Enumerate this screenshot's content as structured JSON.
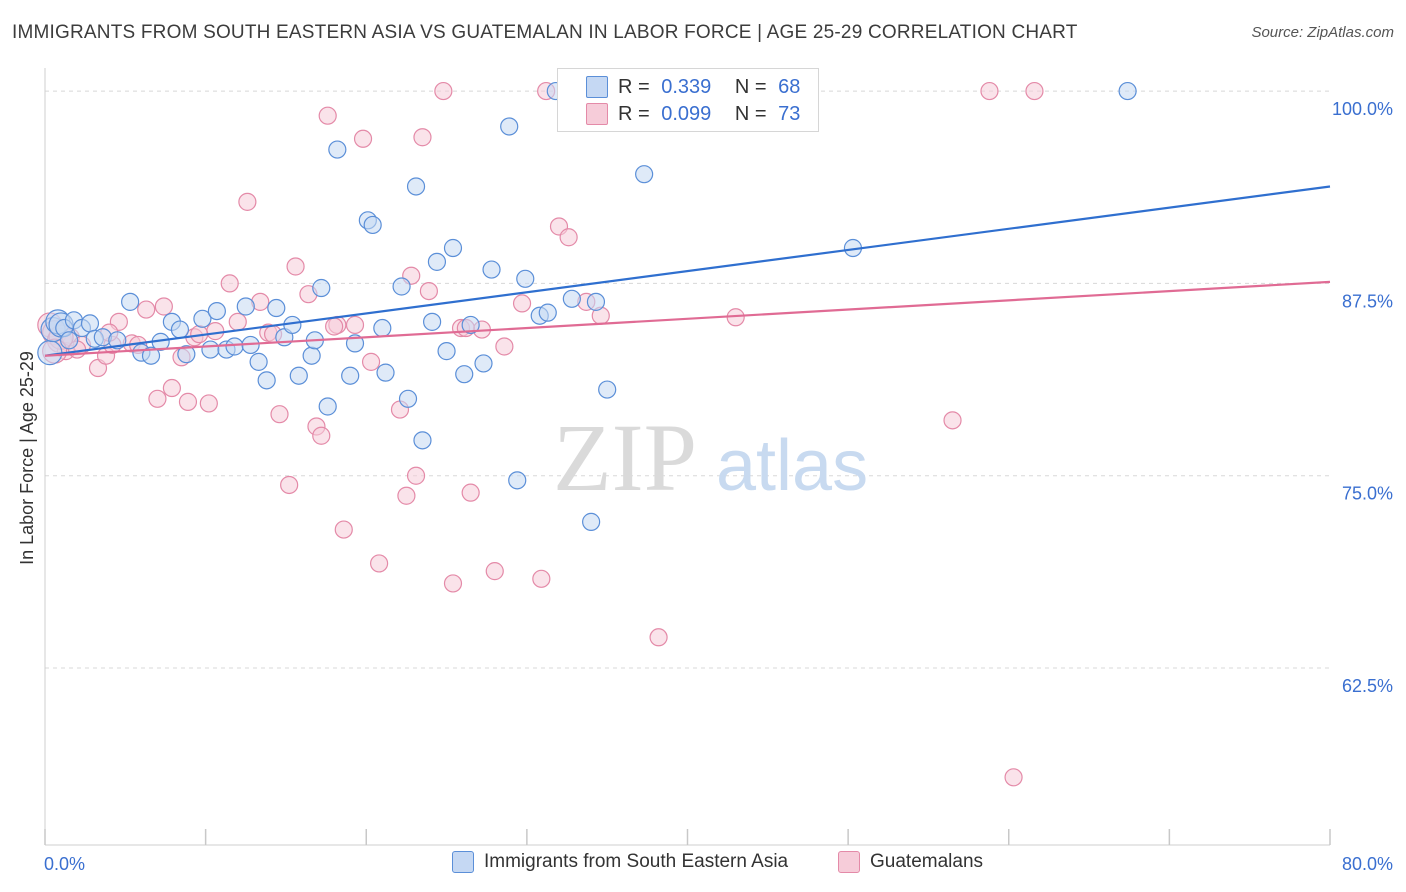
{
  "header": {
    "title": "IMMIGRANTS FROM SOUTH EASTERN ASIA VS GUATEMALAN IN LABOR FORCE | AGE 25-29 CORRELATION CHART",
    "source": "Source: ZipAtlas.com"
  },
  "colors": {
    "blue": "#5b8fd8",
    "blue_fill": "#c5d8f3",
    "blue_line": "#2f6fcf",
    "pink": "#e48aa8",
    "pink_fill": "#f6ccd9",
    "pink_line": "#e06b94",
    "tick_label": "#3a6fd0",
    "grid": "#d8d8d8"
  },
  "legend": {
    "blue": {
      "r_label": "R =",
      "r_value": "0.339",
      "n_label": "N =",
      "n_value": "68"
    },
    "pink": {
      "r_label": "R =",
      "r_value": "0.099",
      "n_label": "N =",
      "n_value": "73"
    }
  },
  "bottom_legend": {
    "blue_label": "Immigrants from South Eastern Asia",
    "pink_label": "Guatemalans"
  },
  "watermark": {
    "zip": "ZIP",
    "atlas": "atlas"
  },
  "chart_data": {
    "type": "scatter",
    "title": "IMMIGRANTS FROM SOUTH EASTERN ASIA VS GUATEMALAN IN LABOR FORCE | AGE 25-29 CORRELATION CHART",
    "ylabel": "In Labor Force | Age 25-29",
    "xlabel": "",
    "xlim": [
      0,
      80
    ],
    "ylim": [
      51,
      101.5
    ],
    "x_tick_labels": [
      "0.0%",
      "80.0%"
    ],
    "y_ticks": [
      62.5,
      75.0,
      87.5,
      100.0
    ],
    "y_tick_labels": [
      "62.5%",
      "75.0%",
      "87.5%",
      "100.0%"
    ],
    "grid": true,
    "series": [
      {
        "name": "Immigrants from South Eastern Asia",
        "color": "#5b8fd8",
        "trend": {
          "x": [
            0,
            80
          ],
          "y": [
            82.8,
            93.8
          ]
        },
        "points": [
          [
            0.3,
            83.0
          ],
          [
            0.5,
            84.5
          ],
          [
            0.8,
            85.0
          ],
          [
            1.0,
            84.8
          ],
          [
            1.2,
            84.6
          ],
          [
            1.5,
            83.8
          ],
          [
            1.8,
            85.1
          ],
          [
            2.3,
            84.6
          ],
          [
            2.8,
            84.9
          ],
          [
            3.1,
            83.9
          ],
          [
            3.6,
            84.0
          ],
          [
            4.5,
            83.8
          ],
          [
            5.3,
            86.3
          ],
          [
            6.0,
            83.0
          ],
          [
            6.6,
            82.8
          ],
          [
            7.2,
            83.7
          ],
          [
            7.9,
            85.0
          ],
          [
            8.4,
            84.5
          ],
          [
            8.8,
            82.9
          ],
          [
            9.8,
            85.2
          ],
          [
            10.3,
            83.2
          ],
          [
            10.7,
            85.7
          ],
          [
            11.3,
            83.2
          ],
          [
            11.8,
            83.4
          ],
          [
            12.5,
            86.0
          ],
          [
            12.8,
            83.5
          ],
          [
            13.3,
            82.4
          ],
          [
            13.8,
            81.2
          ],
          [
            14.4,
            85.9
          ],
          [
            14.9,
            84.0
          ],
          [
            15.4,
            84.8
          ],
          [
            15.8,
            81.5
          ],
          [
            16.6,
            82.8
          ],
          [
            16.8,
            83.8
          ],
          [
            17.2,
            87.2
          ],
          [
            17.6,
            79.5
          ],
          [
            18.2,
            96.2
          ],
          [
            19.0,
            81.5
          ],
          [
            19.3,
            83.6
          ],
          [
            20.1,
            91.6
          ],
          [
            20.4,
            91.3
          ],
          [
            21.0,
            84.6
          ],
          [
            21.2,
            81.7
          ],
          [
            22.2,
            87.3
          ],
          [
            22.6,
            80.0
          ],
          [
            23.1,
            93.8
          ],
          [
            23.5,
            77.3
          ],
          [
            24.1,
            85.0
          ],
          [
            24.4,
            88.9
          ],
          [
            25.0,
            83.1
          ],
          [
            25.4,
            89.8
          ],
          [
            26.1,
            81.6
          ],
          [
            26.5,
            84.8
          ],
          [
            27.3,
            82.3
          ],
          [
            27.8,
            88.4
          ],
          [
            28.9,
            97.7
          ],
          [
            29.4,
            74.7
          ],
          [
            29.9,
            87.8
          ],
          [
            30.8,
            85.4
          ],
          [
            31.3,
            85.6
          ],
          [
            31.8,
            100.0
          ],
          [
            32.8,
            86.5
          ],
          [
            34.0,
            72.0
          ],
          [
            34.3,
            86.3
          ],
          [
            35.0,
            80.6
          ],
          [
            37.3,
            94.6
          ],
          [
            50.3,
            89.8
          ],
          [
            67.4,
            100.0
          ]
        ]
      },
      {
        "name": "Guatemalans",
        "color": "#e48aa8",
        "trend": {
          "x": [
            0,
            80
          ],
          "y": [
            82.8,
            87.6
          ]
        },
        "points": [
          [
            0.3,
            84.8
          ],
          [
            0.6,
            84.3
          ],
          [
            0.9,
            83.8
          ],
          [
            1.3,
            83.1
          ],
          [
            1.6,
            84.0
          ],
          [
            2.3,
            83.5
          ],
          [
            3.3,
            82.0
          ],
          [
            3.8,
            82.8
          ],
          [
            4.2,
            83.5
          ],
          [
            4.6,
            85.0
          ],
          [
            5.4,
            83.6
          ],
          [
            5.8,
            83.5
          ],
          [
            6.3,
            85.8
          ],
          [
            7.0,
            80.0
          ],
          [
            7.4,
            86.0
          ],
          [
            7.9,
            80.7
          ],
          [
            8.5,
            82.7
          ],
          [
            8.9,
            79.8
          ],
          [
            9.3,
            84.0
          ],
          [
            10.2,
            79.7
          ],
          [
            10.6,
            84.4
          ],
          [
            11.5,
            87.5
          ],
          [
            12.0,
            85.0
          ],
          [
            12.6,
            92.8
          ],
          [
            13.4,
            86.3
          ],
          [
            13.9,
            84.3
          ],
          [
            14.6,
            79.0
          ],
          [
            15.2,
            74.4
          ],
          [
            15.6,
            88.6
          ],
          [
            16.4,
            86.8
          ],
          [
            16.9,
            78.2
          ],
          [
            17.2,
            77.6
          ],
          [
            17.6,
            98.4
          ],
          [
            18.2,
            84.8
          ],
          [
            18.6,
            71.5
          ],
          [
            19.3,
            84.8
          ],
          [
            19.8,
            96.9
          ],
          [
            20.3,
            82.4
          ],
          [
            20.8,
            69.3
          ],
          [
            22.1,
            79.3
          ],
          [
            22.5,
            73.7
          ],
          [
            22.8,
            88.0
          ],
          [
            23.1,
            75.0
          ],
          [
            23.5,
            97.0
          ],
          [
            23.9,
            87.0
          ],
          [
            24.8,
            100.0
          ],
          [
            25.4,
            68.0
          ],
          [
            25.9,
            84.6
          ],
          [
            26.5,
            73.9
          ],
          [
            27.2,
            84.5
          ],
          [
            28.0,
            68.8
          ],
          [
            28.6,
            83.4
          ],
          [
            29.7,
            86.2
          ],
          [
            30.9,
            68.3
          ],
          [
            31.2,
            100.0
          ],
          [
            32.0,
            91.2
          ],
          [
            32.6,
            90.5
          ],
          [
            33.7,
            86.3
          ],
          [
            34.6,
            85.4
          ],
          [
            38.2,
            64.5
          ],
          [
            43.0,
            85.3
          ],
          [
            56.5,
            78.6
          ],
          [
            58.8,
            100.0
          ],
          [
            60.3,
            55.4
          ],
          [
            61.6,
            100.0
          ],
          [
            1.0,
            84.0
          ],
          [
            2.0,
            83.2
          ],
          [
            4.0,
            84.3
          ],
          [
            9.6,
            84.2
          ],
          [
            14.2,
            84.2
          ],
          [
            18.0,
            84.7
          ],
          [
            26.2,
            84.6
          ],
          [
            0.6,
            83.1
          ]
        ]
      }
    ]
  }
}
